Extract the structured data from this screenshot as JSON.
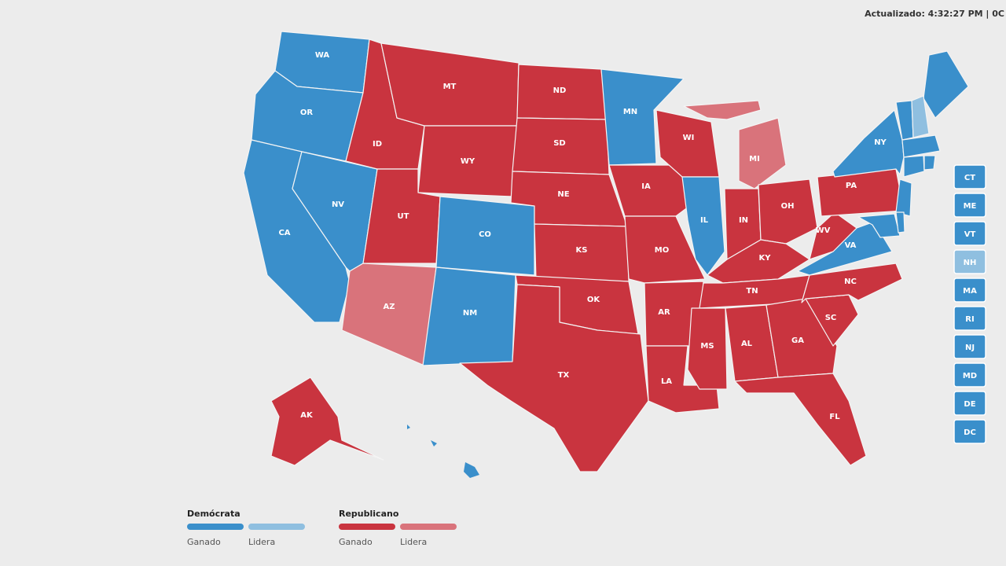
{
  "header": {
    "updated": "Actualizado: 4:32:27 PM | 0C"
  },
  "legend": [
    {
      "title": "Demócrata",
      "items": [
        {
          "label": "Ganado",
          "color": "#3a8fcb"
        },
        {
          "label": "Lidera",
          "color": "#8fbfe0"
        }
      ]
    },
    {
      "title": "Republicano",
      "items": [
        {
          "label": "Ganado",
          "color": "#c9343f"
        },
        {
          "label": "Lidera",
          "color": "#d9737b"
        }
      ]
    }
  ],
  "map": {
    "states": [
      {
        "label": "WA",
        "color": "#3a8fcb"
      },
      {
        "label": "OR",
        "color": "#3a8fcb"
      },
      {
        "label": "CA",
        "color": "#3a8fcb"
      },
      {
        "label": "NV",
        "color": "#3a8fcb"
      },
      {
        "label": "ID",
        "color": "#c9343f"
      },
      {
        "label": "MT",
        "color": "#c9343f"
      },
      {
        "label": "WY",
        "color": "#c9343f"
      },
      {
        "label": "UT",
        "color": "#c9343f"
      },
      {
        "label": "CO",
        "color": "#3a8fcb"
      },
      {
        "label": "AZ",
        "color": "#d9737b"
      },
      {
        "label": "NM",
        "color": "#3a8fcb"
      },
      {
        "label": "ND",
        "color": "#c9343f"
      },
      {
        "label": "SD",
        "color": "#c9343f"
      },
      {
        "label": "NE",
        "color": "#c9343f"
      },
      {
        "label": "KS",
        "color": "#c9343f"
      },
      {
        "label": "OK",
        "color": "#c9343f"
      },
      {
        "label": "TX",
        "color": "#c9343f"
      },
      {
        "label": "MN",
        "color": "#3a8fcb"
      },
      {
        "label": "IA",
        "color": "#c9343f"
      },
      {
        "label": "MO",
        "color": "#c9343f"
      },
      {
        "label": "AR",
        "color": "#c9343f"
      },
      {
        "label": "LA",
        "color": "#c9343f"
      },
      {
        "label": "WI",
        "color": "#c9343f"
      },
      {
        "label": "IL",
        "color": "#3a8fcb"
      },
      {
        "label": "MI",
        "color": "#d9737b"
      },
      {
        "label": "IN",
        "color": "#c9343f"
      },
      {
        "label": "OH",
        "color": "#c9343f"
      },
      {
        "label": "KY",
        "color": "#c9343f"
      },
      {
        "label": "TN",
        "color": "#c9343f"
      },
      {
        "label": "MS",
        "color": "#c9343f"
      },
      {
        "label": "AL",
        "color": "#c9343f"
      },
      {
        "label": "GA",
        "color": "#c9343f"
      },
      {
        "label": "FL",
        "color": "#c9343f"
      },
      {
        "label": "SC",
        "color": "#c9343f"
      },
      {
        "label": "NC",
        "color": "#c9343f"
      },
      {
        "label": "VA",
        "color": "#3a8fcb"
      },
      {
        "label": "WV",
        "color": "#c9343f"
      },
      {
        "label": "PA",
        "color": "#c9343f"
      },
      {
        "label": "NY",
        "color": "#3a8fcb"
      },
      {
        "label": "AK",
        "color": "#c9343f"
      }
    ],
    "unlabeled": [
      {
        "color": "#3a8fcb"
      }
    ],
    "small_states": [
      {
        "label": "CT",
        "color": "#3a8fcb"
      },
      {
        "label": "ME",
        "color": "#3a8fcb"
      },
      {
        "label": "VT",
        "color": "#3a8fcb"
      },
      {
        "label": "NH",
        "color": "#8fbfe0"
      },
      {
        "label": "MA",
        "color": "#3a8fcb"
      },
      {
        "label": "RI",
        "color": "#3a8fcb"
      },
      {
        "label": "NJ",
        "color": "#3a8fcb"
      },
      {
        "label": "MD",
        "color": "#3a8fcb"
      },
      {
        "label": "DE",
        "color": "#3a8fcb"
      },
      {
        "label": "DC",
        "color": "#3a8fcb"
      }
    ]
  }
}
